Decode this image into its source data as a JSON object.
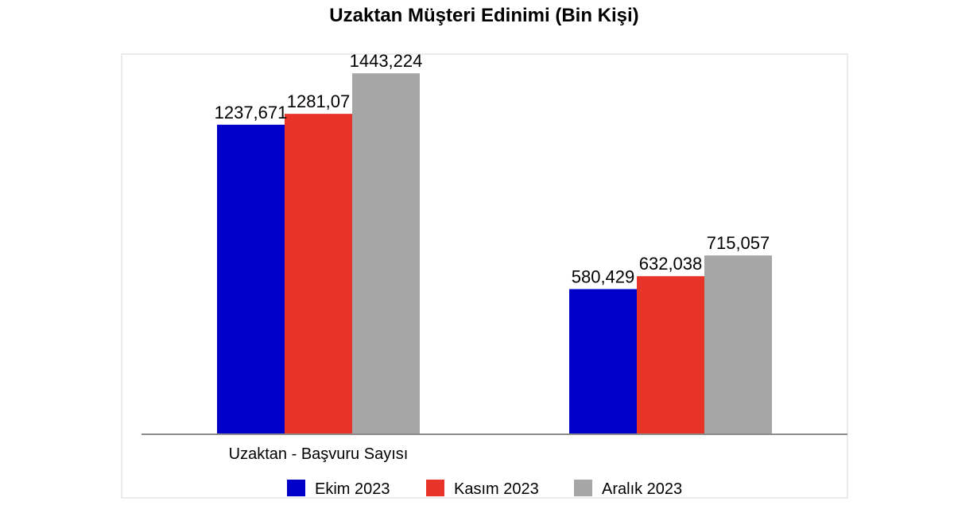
{
  "chart_data": {
    "type": "bar",
    "title": "Uzaktan Müşteri Edinimi (Bin Kişi)",
    "categories": [
      "Uzaktan - Başvuru Sayısı",
      ""
    ],
    "series": [
      {
        "name": "Ekim 2023",
        "color": "#0000C8",
        "values": [
          1237.671,
          580.429
        ],
        "labels": [
          "1237,671",
          "580,429"
        ]
      },
      {
        "name": "Kasım 2023",
        "color": "#E83428",
        "values": [
          1281.07,
          632.038
        ],
        "labels": [
          "1281,07",
          "632,038"
        ]
      },
      {
        "name": "Aralık 2023",
        "color": "#A6A6A6",
        "values": [
          1443.224,
          715.057
        ],
        "labels": [
          "1443,224",
          "715,057"
        ]
      }
    ],
    "ylim": [
      0,
      1520
    ],
    "grid": false,
    "legend": "bottom",
    "xlabel": "",
    "ylabel": ""
  }
}
